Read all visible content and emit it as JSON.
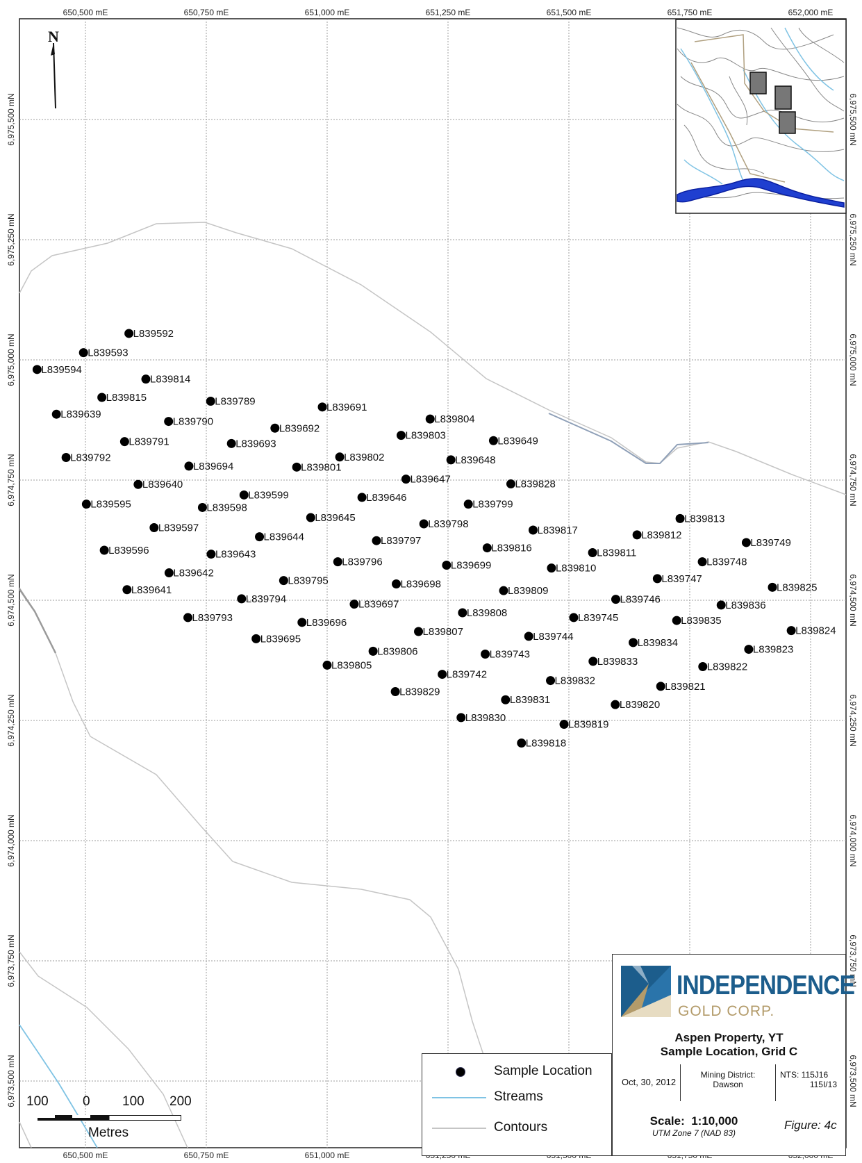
{
  "map": {
    "north_symbol": "N",
    "colors": {
      "stream": "#7fc3e4",
      "contour": "#c5c5c5",
      "grid": "#9e9e9e",
      "frame": "#222222",
      "dot": "#000000"
    },
    "easting_labels": [
      "650,500 mE",
      "650,750 mE",
      "651,000 mE",
      "651,250 mE",
      "651,500 mE",
      "651,750 mE",
      "652,000 mE"
    ],
    "northing_labels_left": [
      "6,975,500 mN",
      "6,975,250 mN",
      "6,975,000 mN",
      "6,974,750 mN",
      "6,974,500 mN",
      "6,974,250 mN",
      "6,974,000 mN",
      "6,973,750 mN",
      "6,973,500 mN"
    ],
    "northing_labels_right": [
      "6,975,500 mN",
      "6,975,250 mN",
      "6,975,000 mN",
      "6,974,750 mN",
      "6,974,500 mN",
      "6,974,250 mN",
      "6,974,000 mN",
      "6,973,750 mN",
      "6,973,500 mN"
    ]
  },
  "samples": [
    {
      "id": "L839592",
      "e": 650590,
      "n": 6975055
    },
    {
      "id": "L839593",
      "e": 650496,
      "n": 6975015
    },
    {
      "id": "L839594",
      "e": 650400,
      "n": 6974980
    },
    {
      "id": "L839814",
      "e": 650625,
      "n": 6974960
    },
    {
      "id": "L839815",
      "e": 650534,
      "n": 6974922
    },
    {
      "id": "L839789",
      "e": 650759,
      "n": 6974914
    },
    {
      "id": "L839691",
      "e": 650990,
      "n": 6974902
    },
    {
      "id": "L839639",
      "e": 650440,
      "n": 6974887
    },
    {
      "id": "L839790",
      "e": 650672,
      "n": 6974872
    },
    {
      "id": "L839804",
      "e": 651213,
      "n": 6974877
    },
    {
      "id": "L839692",
      "e": 650892,
      "n": 6974858
    },
    {
      "id": "L839803",
      "e": 651153,
      "n": 6974843
    },
    {
      "id": "L839649",
      "e": 651344,
      "n": 6974832
    },
    {
      "id": "L839791",
      "e": 650581,
      "n": 6974830
    },
    {
      "id": "L839693",
      "e": 650802,
      "n": 6974826
    },
    {
      "id": "L839792",
      "e": 650460,
      "n": 6974797
    },
    {
      "id": "L839802",
      "e": 651026,
      "n": 6974798
    },
    {
      "id": "L839648",
      "e": 651256,
      "n": 6974792
    },
    {
      "id": "L839694",
      "e": 650714,
      "n": 6974779
    },
    {
      "id": "L839801",
      "e": 650937,
      "n": 6974777
    },
    {
      "id": "L839647",
      "e": 651163,
      "n": 6974752
    },
    {
      "id": "L839640",
      "e": 650609,
      "n": 6974741
    },
    {
      "id": "L839828",
      "e": 651380,
      "n": 6974742
    },
    {
      "id": "L839599",
      "e": 650828,
      "n": 6974719
    },
    {
      "id": "L839646",
      "e": 651072,
      "n": 6974714
    },
    {
      "id": "L839595",
      "e": 650502,
      "n": 6974700
    },
    {
      "id": "L839799",
      "e": 651292,
      "n": 6974700
    },
    {
      "id": "L839598",
      "e": 650742,
      "n": 6974693
    },
    {
      "id": "L839645",
      "e": 650966,
      "n": 6974672
    },
    {
      "id": "L839813",
      "e": 651730,
      "n": 6974670
    },
    {
      "id": "L839798",
      "e": 651200,
      "n": 6974659
    },
    {
      "id": "L839597",
      "e": 650642,
      "n": 6974651
    },
    {
      "id": "L839817",
      "e": 651426,
      "n": 6974646
    },
    {
      "id": "L839644",
      "e": 650860,
      "n": 6974632
    },
    {
      "id": "L839812",
      "e": 651641,
      "n": 6974636
    },
    {
      "id": "L839797",
      "e": 651102,
      "n": 6974624
    },
    {
      "id": "L839749",
      "e": 651867,
      "n": 6974620
    },
    {
      "id": "L839816",
      "e": 651331,
      "n": 6974609
    },
    {
      "id": "L839596",
      "e": 650539,
      "n": 6974604
    },
    {
      "id": "L839811",
      "e": 651549,
      "n": 6974599
    },
    {
      "id": "L839643",
      "e": 650760,
      "n": 6974596
    },
    {
      "id": "L839796",
      "e": 651022,
      "n": 6974580
    },
    {
      "id": "L839748",
      "e": 651776,
      "n": 6974580
    },
    {
      "id": "L839699",
      "e": 651247,
      "n": 6974573
    },
    {
      "id": "L839810",
      "e": 651464,
      "n": 6974567
    },
    {
      "id": "L839642",
      "e": 650673,
      "n": 6974557
    },
    {
      "id": "L839747",
      "e": 651683,
      "n": 6974545
    },
    {
      "id": "L839795",
      "e": 650910,
      "n": 6974541
    },
    {
      "id": "L839698",
      "e": 651143,
      "n": 6974534
    },
    {
      "id": "L839825",
      "e": 651921,
      "n": 6974527
    },
    {
      "id": "L839641",
      "e": 650586,
      "n": 6974522
    },
    {
      "id": "L839809",
      "e": 651365,
      "n": 6974520
    },
    {
      "id": "L839746",
      "e": 651597,
      "n": 6974502
    },
    {
      "id": "L839794",
      "e": 650823,
      "n": 6974503
    },
    {
      "id": "L839697",
      "e": 651056,
      "n": 6974492
    },
    {
      "id": "L839836",
      "e": 651815,
      "n": 6974490
    },
    {
      "id": "L839808",
      "e": 651280,
      "n": 6974474
    },
    {
      "id": "L839793",
      "e": 650712,
      "n": 6974464
    },
    {
      "id": "L839745",
      "e": 651510,
      "n": 6974464
    },
    {
      "id": "L839835",
      "e": 651723,
      "n": 6974458
    },
    {
      "id": "L839696",
      "e": 650948,
      "n": 6974454
    },
    {
      "id": "L839824",
      "e": 651960,
      "n": 6974437
    },
    {
      "id": "L839807",
      "e": 651189,
      "n": 6974435
    },
    {
      "id": "L839744",
      "e": 651417,
      "n": 6974425
    },
    {
      "id": "L839695",
      "e": 650853,
      "n": 6974420
    },
    {
      "id": "L839834",
      "e": 651633,
      "n": 6974412
    },
    {
      "id": "L839823",
      "e": 651872,
      "n": 6974398
    },
    {
      "id": "L839806",
      "e": 651095,
      "n": 6974394
    },
    {
      "id": "L839743",
      "e": 651327,
      "n": 6974388
    },
    {
      "id": "L839833",
      "e": 651550,
      "n": 6974373
    },
    {
      "id": "L839805",
      "e": 651000,
      "n": 6974365
    },
    {
      "id": "L839822",
      "e": 651777,
      "n": 6974362
    },
    {
      "id": "L839742",
      "e": 651238,
      "n": 6974346
    },
    {
      "id": "L839832",
      "e": 651462,
      "n": 6974333
    },
    {
      "id": "L839829",
      "e": 651141,
      "n": 6974310
    },
    {
      "id": "L839821",
      "e": 651690,
      "n": 6974321
    },
    {
      "id": "L839831",
      "e": 651369,
      "n": 6974293
    },
    {
      "id": "L839830",
      "e": 651277,
      "n": 6974256
    },
    {
      "id": "L839820",
      "e": 651596,
      "n": 6974283
    },
    {
      "id": "L839819",
      "e": 651490,
      "n": 6974242
    },
    {
      "id": "L839818",
      "e": 651402,
      "n": 6974203
    }
  ],
  "legend": {
    "items": [
      {
        "label": "Sample Location",
        "symbol": "sample-dot"
      },
      {
        "label": "Streams",
        "symbol": "stream-line"
      },
      {
        "label": "Contours",
        "symbol": "contour-line"
      }
    ]
  },
  "scale_bar": {
    "ticks": [
      "100",
      "0",
      "100",
      "200"
    ],
    "unit": "Metres"
  },
  "title_block": {
    "company_main": "INDEPENDENCE",
    "company_sub": "GOLD CORP.",
    "title_line1": "Aspen Property, YT",
    "title_line2": "Sample Location, Grid C",
    "date": "Oct, 30, 2012",
    "mining_district_label": "Mining District:",
    "mining_district_value": "Dawson",
    "nts_line1": "NTS: 115J16",
    "nts_line2": "115I/13",
    "scale": "Scale:  1:10,000",
    "projection": "UTM Zone 7 (NAD 83)",
    "figure": "Figure: 4c",
    "brand_colors": {
      "blue": "#1c5d8c",
      "gold": "#b39b6a"
    }
  }
}
